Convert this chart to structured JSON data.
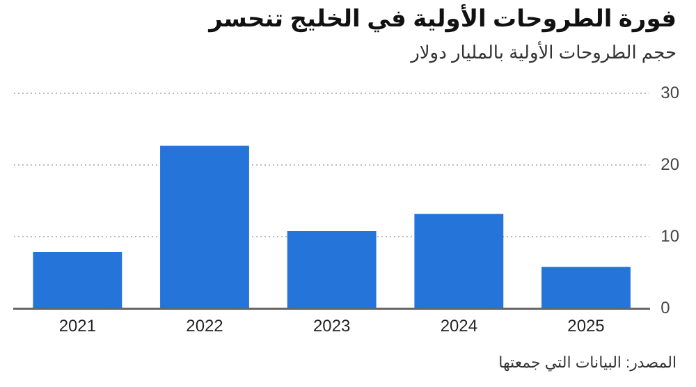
{
  "chart_data": {
    "type": "bar",
    "title": "فورة الطروحات الأولية في الخليج تنحسر",
    "subtitle": "حجم الطروحات الأولية بالمليار دولار",
    "categories": [
      "2021",
      "2022",
      "2023",
      "2024",
      "2025"
    ],
    "values": [
      7.9,
      22.7,
      10.8,
      13.2,
      5.8
    ],
    "color": "#2474d9",
    "ylim": [
      0,
      30
    ],
    "yticks": [
      0,
      10,
      20,
      30
    ],
    "grid": "y",
    "annotations": [
      "المصدر: البيانات التي جمعتها"
    ]
  }
}
